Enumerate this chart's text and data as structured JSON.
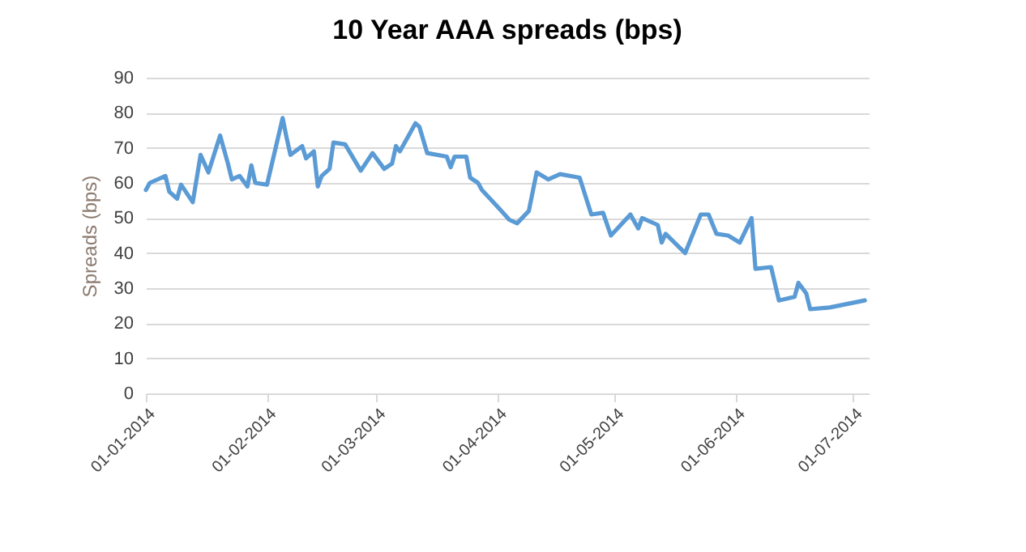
{
  "chart_data": {
    "type": "line",
    "title": "10 Year AAA spreads (bps)",
    "ylabel": "Spreads (bps)",
    "x": [
      "2014-01-01",
      "2014-01-02",
      "2014-01-06",
      "2014-01-07",
      "2014-01-09",
      "2014-01-10",
      "2014-01-13",
      "2014-01-15",
      "2014-01-17",
      "2014-01-20",
      "2014-01-22",
      "2014-01-23",
      "2014-01-25",
      "2014-01-27",
      "2014-01-28",
      "2014-01-29",
      "2014-02-01",
      "2014-02-05",
      "2014-02-06",
      "2014-02-07",
      "2014-02-10",
      "2014-02-11",
      "2014-02-13",
      "2014-02-14",
      "2014-02-15",
      "2014-02-17",
      "2014-02-18",
      "2014-02-21",
      "2014-02-25",
      "2014-02-28",
      "2014-03-03",
      "2014-03-05",
      "2014-03-06",
      "2014-03-07",
      "2014-03-11",
      "2014-03-12",
      "2014-03-14",
      "2014-03-19",
      "2014-03-20",
      "2014-03-21",
      "2014-03-24",
      "2014-03-25",
      "2014-03-27",
      "2014-03-28",
      "2014-04-02",
      "2014-04-04",
      "2014-04-06",
      "2014-04-09",
      "2014-04-11",
      "2014-04-14",
      "2014-04-17",
      "2014-04-22",
      "2014-04-25",
      "2014-04-28",
      "2014-04-30",
      "2014-05-05",
      "2014-05-07",
      "2014-05-08",
      "2014-05-12",
      "2014-05-13",
      "2014-05-14",
      "2014-05-19",
      "2014-05-23",
      "2014-05-25",
      "2014-05-27",
      "2014-05-30",
      "2014-06-02",
      "2014-06-05",
      "2014-06-06",
      "2014-06-10",
      "2014-06-12",
      "2014-06-16",
      "2014-06-17",
      "2014-06-19",
      "2014-06-20",
      "2014-06-25",
      "2014-07-04"
    ],
    "series": [
      {
        "color": "#5b9bd5",
        "values": [
          58,
          60,
          62,
          57.5,
          55.5,
          59.5,
          54.5,
          68,
          63,
          73.5,
          65.5,
          61,
          62,
          59,
          65,
          60,
          59.5,
          78.5,
          73,
          68,
          70.5,
          67,
          69,
          59,
          62,
          64,
          71.5,
          71,
          63.5,
          68.5,
          64,
          65.5,
          70.5,
          69,
          77,
          76,
          68.5,
          67.5,
          64.5,
          67.5,
          67.5,
          61.5,
          60,
          58,
          52,
          49.5,
          48.5,
          52,
          63,
          61,
          62.5,
          61.5,
          51,
          51.5,
          45,
          51,
          47,
          50,
          48,
          43,
          45.5,
          40,
          51,
          51,
          45.5,
          45,
          43,
          50,
          35.5,
          36,
          26.5,
          27.5,
          31.5,
          28.5,
          24,
          24.5,
          26.5
        ]
      }
    ],
    "xlim": [
      "2014-01-01",
      "2014-07-05"
    ],
    "xticks": [
      {
        "value": "2014-01-01",
        "label": "01-01-2014"
      },
      {
        "value": "2014-02-01",
        "label": "01-02-2014"
      },
      {
        "value": "2014-03-01",
        "label": "01-03-2014"
      },
      {
        "value": "2014-04-01",
        "label": "01-04-2014"
      },
      {
        "value": "2014-05-01",
        "label": "01-05-2014"
      },
      {
        "value": "2014-06-01",
        "label": "01-06-2014"
      },
      {
        "value": "2014-07-01",
        "label": "01-07-2014"
      }
    ],
    "ylim": [
      0,
      90
    ],
    "yticks": [
      0,
      10,
      20,
      30,
      40,
      50,
      60,
      70,
      80,
      90
    ],
    "grid": "y",
    "legend": false,
    "marker": "none",
    "line_style": "solid"
  }
}
